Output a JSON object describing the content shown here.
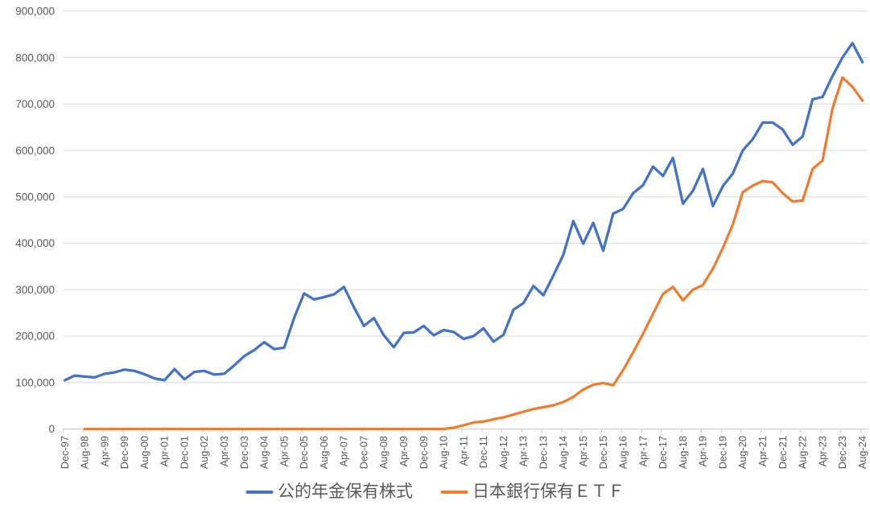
{
  "chart_data": {
    "type": "line",
    "title": "",
    "xlabel": "",
    "ylabel": "",
    "ylim": [
      0,
      900000
    ],
    "ytick_step": 100000,
    "grid": true,
    "legend_position": "bottom",
    "x_label_every": 2,
    "categories": [
      "Dec-97",
      "Apr-98",
      "Aug-98",
      "Dec-98",
      "Apr-99",
      "Aug-99",
      "Dec-99",
      "Apr-00",
      "Aug-00",
      "Dec-00",
      "Apr-01",
      "Aug-01",
      "Dec-01",
      "Apr-02",
      "Aug-02",
      "Dec-02",
      "Apr-03",
      "Aug-03",
      "Dec-03",
      "Apr-04",
      "Aug-04",
      "Dec-04",
      "Apr-05",
      "Aug-05",
      "Dec-05",
      "Apr-06",
      "Aug-06",
      "Dec-06",
      "Apr-07",
      "Aug-07",
      "Dec-07",
      "Apr-08",
      "Aug-08",
      "Dec-08",
      "Apr-09",
      "Aug-09",
      "Dec-09",
      "Apr-10",
      "Aug-10",
      "Dec-10",
      "Apr-11",
      "Aug-11",
      "Dec-11",
      "Apr-12",
      "Aug-12",
      "Dec-12",
      "Apr-13",
      "Aug-13",
      "Dec-13",
      "Apr-14",
      "Aug-14",
      "Dec-14",
      "Apr-15",
      "Aug-15",
      "Dec-15",
      "Apr-16",
      "Aug-16",
      "Dec-16",
      "Apr-17",
      "Aug-17",
      "Dec-17",
      "Apr-18",
      "Aug-18",
      "Dec-18",
      "Apr-19",
      "Aug-19",
      "Dec-19",
      "Apr-20",
      "Aug-20",
      "Dec-20",
      "Apr-21",
      "Aug-21",
      "Dec-21",
      "Apr-22",
      "Aug-22",
      "Dec-22",
      "Apr-23",
      "Aug-23",
      "Dec-23",
      "Apr-24",
      "Aug-24"
    ],
    "x_tick_labels": [
      "Dec-97",
      "Aug-98",
      "Apr-99",
      "Dec-99",
      "Aug-00",
      "Apr-01",
      "Dec-01",
      "Aug-02",
      "Apr-03",
      "Dec-03",
      "Aug-04",
      "Apr-05",
      "Dec-05",
      "Aug-06",
      "Apr-07",
      "Dec-07",
      "Aug-08",
      "Apr-09",
      "Dec-09",
      "Aug-10",
      "Apr-11",
      "Dec-11",
      "Aug-12",
      "Apr-13",
      "Dec-13",
      "Aug-14",
      "Apr-15",
      "Dec-15",
      "Aug-16",
      "Apr-17",
      "Dec-17",
      "Aug-18",
      "Apr-19",
      "Dec-19",
      "Aug-20",
      "Apr-21",
      "Dec-21",
      "Aug-22",
      "Apr-23",
      "Dec-23",
      "Aug-24"
    ],
    "y_tick_labels": [
      "0",
      "100,000",
      "200,000",
      "300,000",
      "400,000",
      "500,000",
      "600,000",
      "700,000",
      "800,000",
      "900,000"
    ],
    "series": [
      {
        "name": "公的年金保有株式",
        "color": "#4472C4",
        "values": [
          105000,
          115000,
          113000,
          111000,
          119000,
          122000,
          128000,
          125000,
          118000,
          109000,
          105000,
          129000,
          107000,
          123000,
          125000,
          117000,
          119000,
          137000,
          157000,
          170000,
          187000,
          172000,
          175000,
          239000,
          292000,
          279000,
          284000,
          290000,
          306000,
          262000,
          222000,
          239000,
          202000,
          176000,
          207000,
          208000,
          222000,
          202000,
          213000,
          209000,
          194000,
          200000,
          217000,
          188000,
          203000,
          257000,
          271000,
          308000,
          288000,
          330000,
          375000,
          448000,
          399000,
          444000,
          384000,
          464000,
          474000,
          508000,
          525000,
          565000,
          545000,
          584000,
          485000,
          513000,
          560000,
          480000,
          523000,
          550000,
          600000,
          624000,
          660000,
          660000,
          645000,
          612000,
          630000,
          710000,
          715000,
          760000,
          800000,
          831000,
          790000
        ]
      },
      {
        "name": "日本銀行保有ＥＴＦ",
        "color": "#ED7D31",
        "values": [
          null,
          null,
          0,
          0,
          0,
          0,
          0,
          0,
          0,
          0,
          0,
          0,
          0,
          0,
          0,
          0,
          0,
          0,
          0,
          0,
          0,
          0,
          0,
          0,
          0,
          0,
          0,
          0,
          0,
          0,
          0,
          0,
          0,
          0,
          0,
          0,
          0,
          0,
          0,
          3000,
          8000,
          14000,
          16000,
          21000,
          25000,
          31000,
          37000,
          43000,
          47000,
          51000,
          58000,
          69000,
          85000,
          95000,
          99000,
          94000,
          127000,
          165000,
          205000,
          248000,
          291000,
          306000,
          277000,
          300000,
          310000,
          345000,
          390000,
          440000,
          510000,
          524000,
          534000,
          531000,
          508000,
          490000,
          492000,
          560000,
          578000,
          690000,
          757000,
          737000,
          707000
        ]
      }
    ],
    "colors": {
      "gridline": "#D9D9D9",
      "axis_line": "#C9C9C9",
      "tick_mark": "#C9C9C9",
      "axis_text": "#595959",
      "legend_text": "#595959",
      "background": "#FFFFFF"
    }
  }
}
